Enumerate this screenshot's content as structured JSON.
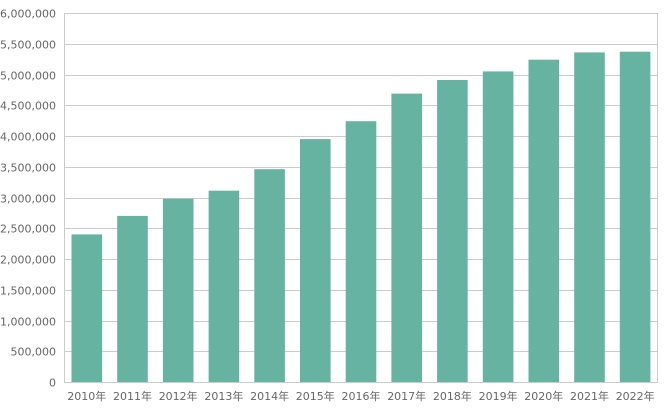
{
  "chart_data": {
    "type": "bar",
    "title": "",
    "xlabel": "",
    "ylabel": "",
    "categories": [
      "2010年",
      "2011年",
      "2012年",
      "2013年",
      "2014年",
      "2015年",
      "2016年",
      "2017年",
      "2018年",
      "2019年",
      "2020年",
      "2021年",
      "2022年"
    ],
    "series": [
      {
        "values": [
          2400000,
          2700000,
          2980000,
          3110000,
          3460000,
          3950000,
          4240000,
          4690000,
          4910000,
          5050000,
          5240000,
          5360000,
          5370000
        ]
      }
    ],
    "ylim": [
      0,
      6000000
    ],
    "yticks": [
      0,
      500000,
      1000000,
      1500000,
      2000000,
      2500000,
      3000000,
      3500000,
      4000000,
      4500000,
      5000000,
      5500000,
      6000000
    ],
    "ytick_labels": [
      "0",
      "500,000",
      "1,000,000",
      "1,500,000",
      "2,000,000",
      "2,500,000",
      "3,000,000",
      "3,500,000",
      "4,000,000",
      "4,500,000",
      "5,000,000",
      "5,500,000",
      "6,000,000"
    ],
    "grid": true,
    "legend": "none",
    "colors": {
      "bar": "#66b3a1",
      "grid": "#cccccc",
      "axis_text": "#666666"
    }
  }
}
